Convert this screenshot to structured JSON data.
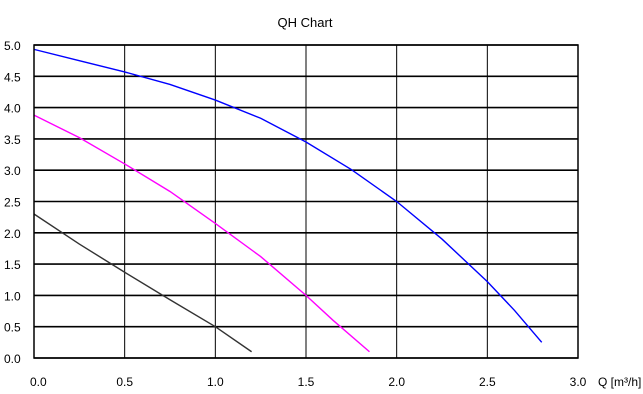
{
  "chart_data": {
    "type": "line",
    "title": "QH Chart",
    "xlabel": "Q [m³/h]",
    "ylabel": "",
    "xlim": [
      0,
      3.0
    ],
    "ylim": [
      0,
      5.0
    ],
    "x_ticks": [
      "0.0",
      "0.5",
      "1.0",
      "1.5",
      "2.0",
      "2.5",
      "3.0"
    ],
    "y_ticks": [
      "0.0",
      "0.5",
      "1.0",
      "1.5",
      "2.0",
      "2.5",
      "3.0",
      "3.5",
      "4.0",
      "4.5",
      "5.0"
    ],
    "grid": {
      "vertical": true,
      "horizontal": true
    },
    "legend": "none",
    "series": [
      {
        "color": "#0000ff",
        "x": [
          0.0,
          0.25,
          0.5,
          0.75,
          1.0,
          1.25,
          1.5,
          1.75,
          2.0,
          2.25,
          2.5,
          2.65,
          2.8
        ],
        "y": [
          4.93,
          4.75,
          4.57,
          4.37,
          4.12,
          3.83,
          3.45,
          3.01,
          2.5,
          1.9,
          1.22,
          0.76,
          0.25
        ]
      },
      {
        "color": "#ff00ff",
        "x": [
          0.0,
          0.25,
          0.5,
          0.75,
          1.0,
          1.25,
          1.5,
          1.65,
          1.85
        ],
        "y": [
          3.88,
          3.52,
          3.1,
          2.66,
          2.15,
          1.62,
          1.0,
          0.6,
          0.1
        ]
      },
      {
        "color": "#333333",
        "x": [
          0.0,
          0.25,
          0.5,
          0.75,
          1.0,
          1.2
        ],
        "y": [
          2.3,
          1.82,
          1.37,
          0.93,
          0.5,
          0.1
        ]
      }
    ]
  }
}
